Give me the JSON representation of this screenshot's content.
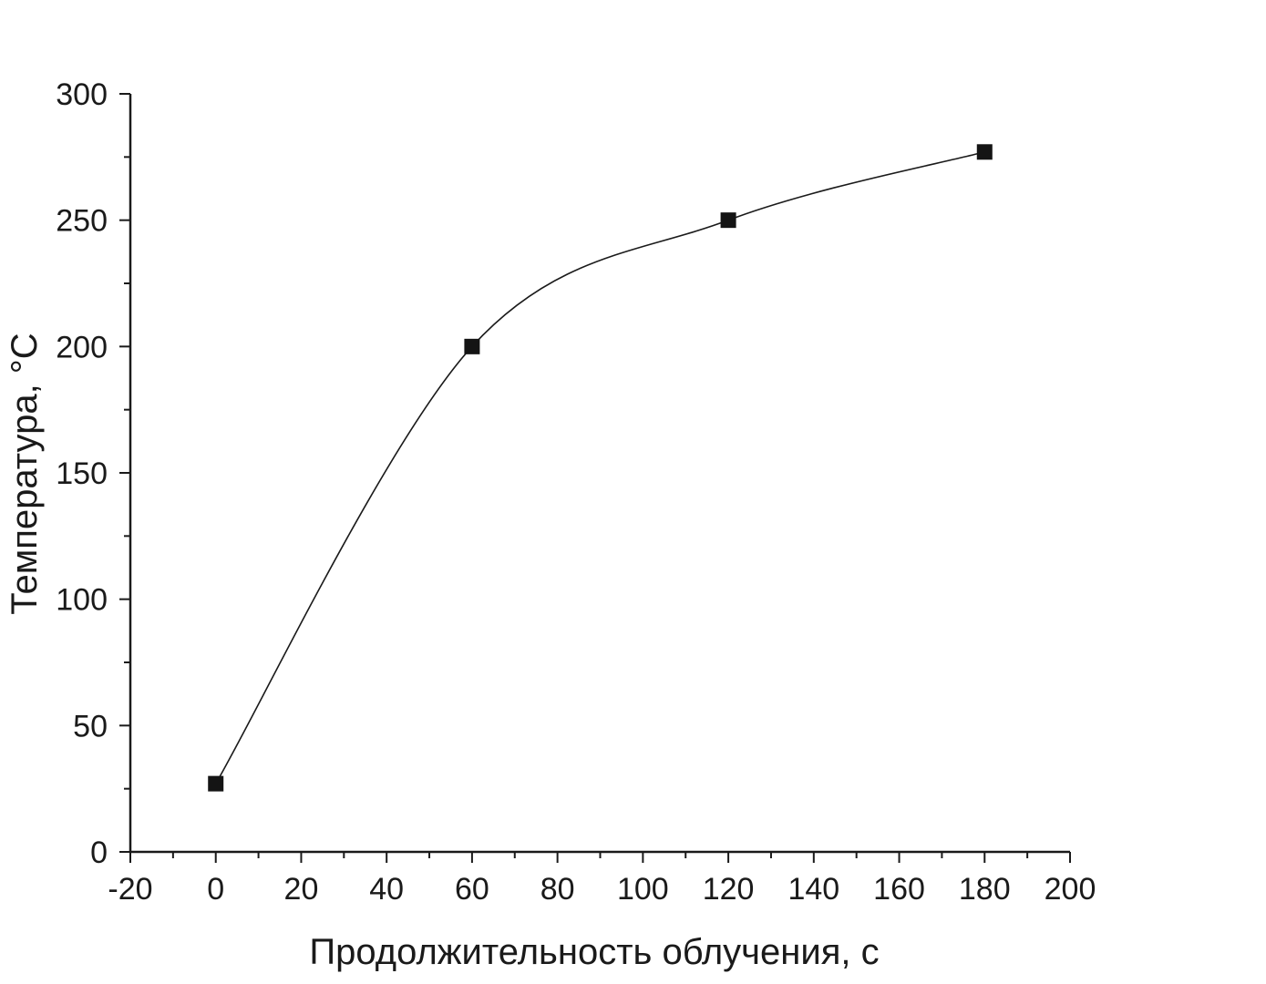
{
  "chart_data": {
    "type": "line",
    "title": "",
    "xlabel": "Продолжительность облучения, с",
    "ylabel": "Температура, °С",
    "xlim": [
      -20,
      200
    ],
    "ylim": [
      0,
      300
    ],
    "x_ticks": [
      -20,
      0,
      20,
      40,
      60,
      80,
      100,
      120,
      140,
      160,
      180,
      200
    ],
    "y_ticks": [
      0,
      50,
      100,
      150,
      200,
      250,
      300
    ],
    "x_tick_labels": [
      "-20",
      "0",
      "20",
      "40",
      "60",
      "80",
      "100",
      "120",
      "140",
      "160",
      "180",
      "200"
    ],
    "y_tick_labels": [
      "0",
      "50",
      "100",
      "150",
      "200",
      "250",
      "300"
    ],
    "grid": false,
    "marker": "square",
    "line_style": "smooth",
    "color": "#141414",
    "series": [
      {
        "x": [
          0,
          60,
          120,
          180
        ],
        "y": [
          27,
          200,
          250,
          277
        ]
      }
    ]
  }
}
